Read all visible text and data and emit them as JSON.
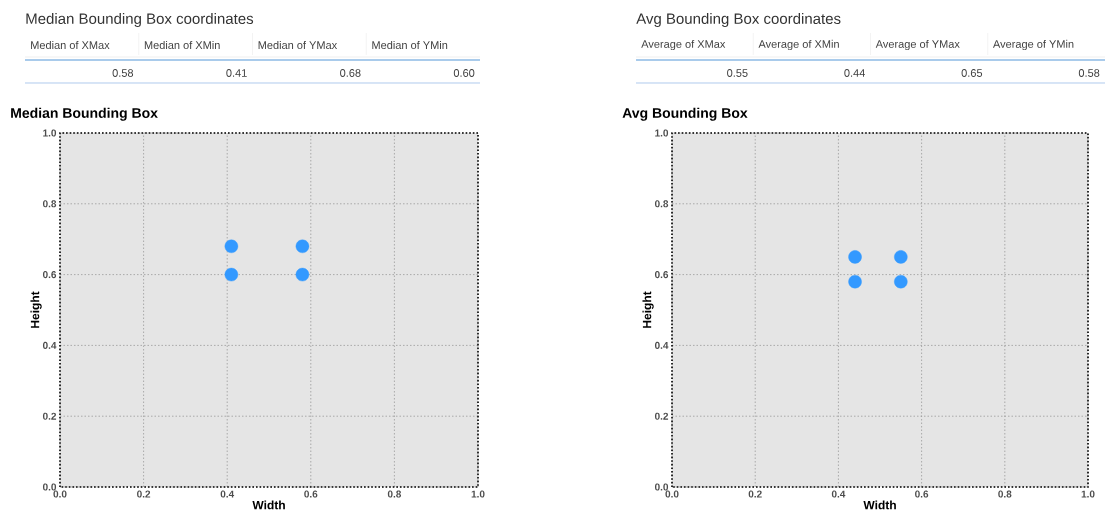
{
  "chart_data": [
    {
      "type": "other",
      "title": "Median Bounding Box coordinates",
      "categories": [
        "Median of XMax",
        "Median of XMin",
        "Median of YMax",
        "Median of YMin"
      ],
      "value_labels": [
        "0.58",
        "0.41",
        "0.68",
        "0.60"
      ]
    },
    {
      "type": "other",
      "title": "Avg Bounding Box coordinates",
      "categories": [
        "Average of XMax",
        "Average of XMin",
        "Average of YMax",
        "Average of YMin"
      ],
      "value_labels": [
        "0.55",
        "0.44",
        "0.65",
        "0.58"
      ]
    },
    {
      "type": "scatter",
      "title": "Median Bounding Box",
      "xlabel": "Width",
      "ylabel": "Height",
      "x": [
        0.41,
        0.58,
        0.41,
        0.58
      ],
      "values": [
        0.68,
        0.68,
        0.6,
        0.6
      ],
      "color": "#3399ff",
      "grid": true,
      "xlim": [
        0,
        1
      ],
      "ylim": [
        0,
        1
      ],
      "xticks": [
        {
          "value": 0,
          "label": "0.0"
        },
        {
          "value": 0.2,
          "label": "0.2"
        },
        {
          "value": 0.4,
          "label": "0.4"
        },
        {
          "value": 0.6,
          "label": "0.6"
        },
        {
          "value": 0.8,
          "label": "0.8"
        },
        {
          "value": 1,
          "label": "1.0"
        }
      ],
      "yticks": [
        {
          "value": 0,
          "label": "0.0"
        },
        {
          "value": 0.2,
          "label": "0.2"
        },
        {
          "value": 0.4,
          "label": "0.4"
        },
        {
          "value": 0.6,
          "label": "0.6"
        },
        {
          "value": 0.8,
          "label": "0.8"
        },
        {
          "value": 1,
          "label": "1.0"
        }
      ]
    },
    {
      "type": "scatter",
      "title": "Avg Bounding Box",
      "xlabel": "Width",
      "ylabel": "Height",
      "x": [
        0.44,
        0.55,
        0.44,
        0.55
      ],
      "values": [
        0.65,
        0.65,
        0.58,
        0.58
      ],
      "color": "#3399ff",
      "grid": true,
      "xlim": [
        0,
        1
      ],
      "ylim": [
        0,
        1
      ],
      "xticks": [
        {
          "value": 0,
          "label": "0.0"
        },
        {
          "value": 0.2,
          "label": "0.2"
        },
        {
          "value": 0.4,
          "label": "0.4"
        },
        {
          "value": 0.6,
          "label": "0.6"
        },
        {
          "value": 0.8,
          "label": "0.8"
        },
        {
          "value": 1,
          "label": "1.0"
        }
      ],
      "yticks": [
        {
          "value": 0,
          "label": "0.0"
        },
        {
          "value": 0.2,
          "label": "0.2"
        },
        {
          "value": 0.4,
          "label": "0.4"
        },
        {
          "value": 0.6,
          "label": "0.6"
        },
        {
          "value": 0.8,
          "label": "0.8"
        },
        {
          "value": 1,
          "label": "1.0"
        }
      ]
    }
  ]
}
